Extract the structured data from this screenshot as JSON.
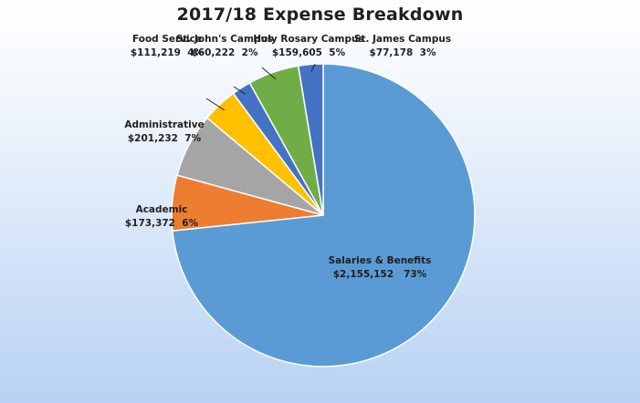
{
  "chart_data": {
    "type": "pie",
    "title": "2017/18 Expense Breakdown",
    "slices": [
      {
        "name": "Salaries & Benefits",
        "value_text": "$2,155,152",
        "percent_text": "73%",
        "value": 2155152,
        "color": "#5b9bd5"
      },
      {
        "name": "Academic",
        "value_text": "$173,372",
        "percent_text": "6%",
        "value": 173372,
        "color": "#ed7d31"
      },
      {
        "name": "Administrative",
        "value_text": "$201,232",
        "percent_text": "7%",
        "value": 201232,
        "color": "#a5a5a5"
      },
      {
        "name": "Food Service",
        "value_text": "$111,219",
        "percent_text": "4%",
        "value": 111219,
        "color": "#ffc000"
      },
      {
        "name": "St. John's Campus",
        "value_text": "$60,222",
        "percent_text": "2%",
        "value": 60222,
        "color": "#4472c4"
      },
      {
        "name": "Holy Rosary Campus",
        "value_text": "$159,605",
        "percent_text": "5%",
        "value": 159605,
        "color": "#70ad47"
      },
      {
        "name": "St. James Campus",
        "value_text": "$77,178",
        "percent_text": "3%",
        "value": 77178,
        "color": "#4472c4"
      }
    ]
  }
}
